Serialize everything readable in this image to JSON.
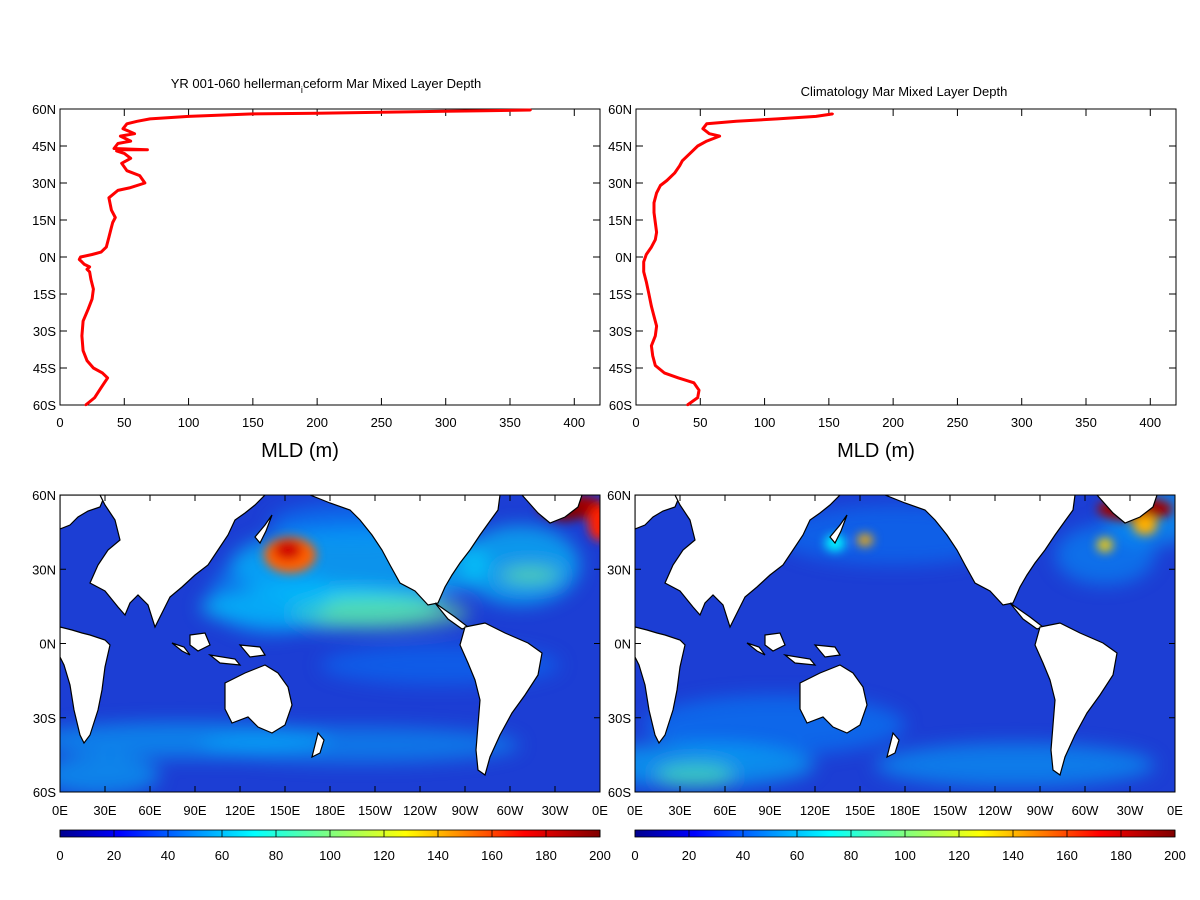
{
  "chart_data": [
    {
      "type": "line",
      "title": "YR 001-060 hellerman",
      "title_sub": "i",
      "title_rest": "ceform Mar Mixed Layer Depth",
      "xlabel": "MLD (m)",
      "xlim": [
        0,
        420
      ],
      "ylim": [
        -60,
        60
      ],
      "x_ticks": [
        0,
        50,
        100,
        150,
        200,
        250,
        300,
        350,
        400
      ],
      "y_ticks": [
        60,
        45,
        30,
        15,
        0,
        -15,
        -30,
        -45,
        -60
      ],
      "y_tick_labels": [
        "60N",
        "45N",
        "30N",
        "15N",
        "0N",
        "15S",
        "30S",
        "45S",
        "60S"
      ],
      "series": [
        {
          "color": "#ff0000",
          "points": [
            [
              20,
              -60
            ],
            [
              27,
              -57
            ],
            [
              32,
              -53
            ],
            [
              37,
              -49
            ],
            [
              33,
              -47
            ],
            [
              26,
              -45
            ],
            [
              21,
              -42
            ],
            [
              18,
              -38
            ],
            [
              17,
              -32
            ],
            [
              18,
              -26
            ],
            [
              22,
              -21
            ],
            [
              25,
              -17
            ],
            [
              26,
              -13
            ],
            [
              24,
              -9
            ],
            [
              23,
              -6
            ],
            [
              21,
              -5
            ],
            [
              23,
              -4
            ],
            [
              19,
              -3
            ],
            [
              17,
              -2
            ],
            [
              15,
              -1
            ],
            [
              16,
              0
            ],
            [
              25,
              1
            ],
            [
              32,
              2
            ],
            [
              36,
              4
            ],
            [
              38,
              8
            ],
            [
              40,
              12
            ],
            [
              41,
              14
            ],
            [
              43,
              16
            ],
            [
              40,
              19
            ],
            [
              38,
              24
            ],
            [
              45,
              27
            ],
            [
              54,
              28
            ],
            [
              66,
              30
            ],
            [
              62,
              33
            ],
            [
              52,
              35
            ],
            [
              48,
              38
            ],
            [
              55,
              40
            ],
            [
              50,
              42
            ],
            [
              44,
              43
            ],
            [
              48,
              43.5
            ],
            [
              68,
              43.5
            ],
            [
              42,
              44
            ],
            [
              45,
              46
            ],
            [
              55,
              47
            ],
            [
              47,
              49
            ],
            [
              58,
              50
            ],
            [
              49,
              52
            ],
            [
              52,
              54
            ],
            [
              60,
              55
            ],
            [
              70,
              56
            ],
            [
              100,
              57
            ],
            [
              150,
              58
            ],
            [
              200,
              58.3
            ],
            [
              250,
              58.7
            ],
            [
              300,
              59.1
            ],
            [
              330,
              59.3
            ],
            [
              366,
              59.6
            ]
          ]
        }
      ]
    },
    {
      "type": "line",
      "title": "Climatology Mar Mixed Layer Depth",
      "xlabel": "MLD (m)",
      "xlim": [
        0,
        420
      ],
      "ylim": [
        -60,
        60
      ],
      "x_ticks": [
        0,
        50,
        100,
        150,
        200,
        250,
        300,
        350,
        400
      ],
      "y_ticks": [
        60,
        45,
        30,
        15,
        0,
        -15,
        -30,
        -45,
        -60
      ],
      "y_tick_labels": [
        "60N",
        "45N",
        "30N",
        "15N",
        "0N",
        "15S",
        "30S",
        "45S",
        "60S"
      ],
      "series": [
        {
          "color": "#ff0000",
          "points": [
            [
              40,
              -60
            ],
            [
              48,
              -57
            ],
            [
              49,
              -54
            ],
            [
              45,
              -51
            ],
            [
              33,
              -49
            ],
            [
              22,
              -47
            ],
            [
              15,
              -44
            ],
            [
              13,
              -40
            ],
            [
              12,
              -36
            ],
            [
              15,
              -32
            ],
            [
              16,
              -28
            ],
            [
              14,
              -24
            ],
            [
              12,
              -20
            ],
            [
              10,
              -15
            ],
            [
              8,
              -10
            ],
            [
              6,
              -6
            ],
            [
              6,
              -2
            ],
            [
              8,
              1
            ],
            [
              12,
              4
            ],
            [
              15,
              7
            ],
            [
              16,
              10
            ],
            [
              15,
              14
            ],
            [
              14,
              18
            ],
            [
              14,
              22
            ],
            [
              16,
              26
            ],
            [
              19,
              29
            ],
            [
              24,
              31
            ],
            [
              30,
              34
            ],
            [
              34,
              37
            ],
            [
              36,
              39
            ],
            [
              42,
              42
            ],
            [
              48,
              45
            ],
            [
              55,
              47
            ],
            [
              65,
              49
            ],
            [
              57,
              50
            ],
            [
              52,
              52
            ],
            [
              55,
              54
            ],
            [
              78,
              55
            ],
            [
              110,
              56
            ],
            [
              140,
              57
            ],
            [
              153,
              58
            ]
          ]
        }
      ]
    },
    {
      "type": "heatmap",
      "x_tick_labels": [
        "0E",
        "30E",
        "60E",
        "90E",
        "120E",
        "150E",
        "180E",
        "150W",
        "120W",
        "90W",
        "60W",
        "30W",
        "0E"
      ],
      "y_tick_labels": [
        "60N",
        "30N",
        "0N",
        "30S",
        "60S"
      ],
      "colorbar_ticks": [
        0,
        20,
        40,
        60,
        80,
        100,
        120,
        140,
        160,
        180,
        200
      ],
      "colorbar_range": [
        0,
        200
      ],
      "colormap": "jet"
    },
    {
      "type": "heatmap",
      "x_tick_labels": [
        "0E",
        "30E",
        "60E",
        "90E",
        "120E",
        "150E",
        "180E",
        "150W",
        "120W",
        "90W",
        "60W",
        "30W",
        "0E"
      ],
      "y_tick_labels": [
        "60N",
        "30N",
        "0N",
        "30S",
        "60S"
      ],
      "colorbar_ticks": [
        0,
        20,
        40,
        60,
        80,
        100,
        120,
        140,
        160,
        180,
        200
      ],
      "colorbar_range": [
        0,
        200
      ],
      "colormap": "jet"
    }
  ],
  "colors": {
    "line": "#ff0000",
    "ocean_base": "#1c3ed4",
    "land": "#ffffff",
    "jet": [
      "#00008f",
      "#0000ff",
      "#0080ff",
      "#00ffff",
      "#80ff80",
      "#ffff00",
      "#ff8000",
      "#ff0000",
      "#800000"
    ]
  }
}
